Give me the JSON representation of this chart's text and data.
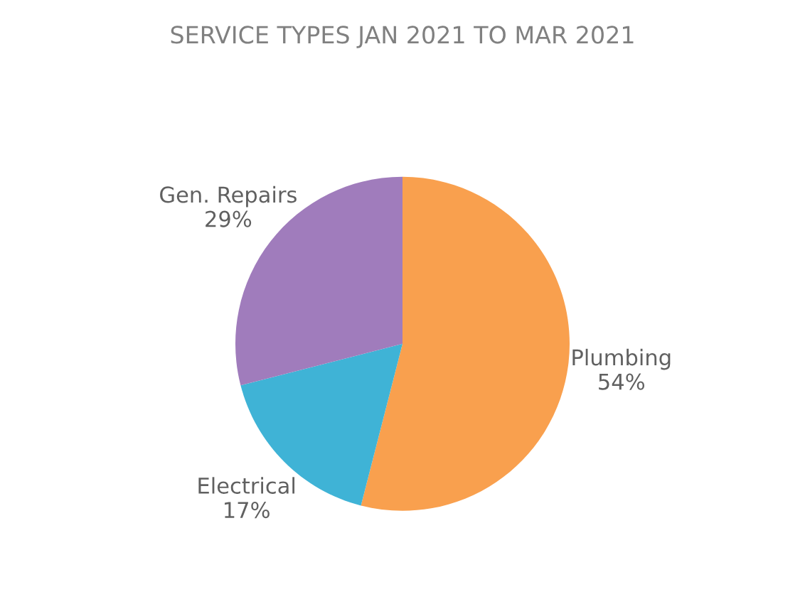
{
  "chart_data": {
    "type": "pie",
    "title": "SERVICE TYPES JAN 2021 TO MAR 2021",
    "categories": [
      "Plumbing",
      "Electrical",
      "Gen. Repairs"
    ],
    "values": [
      54,
      17,
      29
    ],
    "value_labels": [
      "54%",
      "17%",
      "29%"
    ],
    "colors": [
      "#f9a04e",
      "#3fb3d6",
      "#a07cbc"
    ],
    "legend": false
  }
}
